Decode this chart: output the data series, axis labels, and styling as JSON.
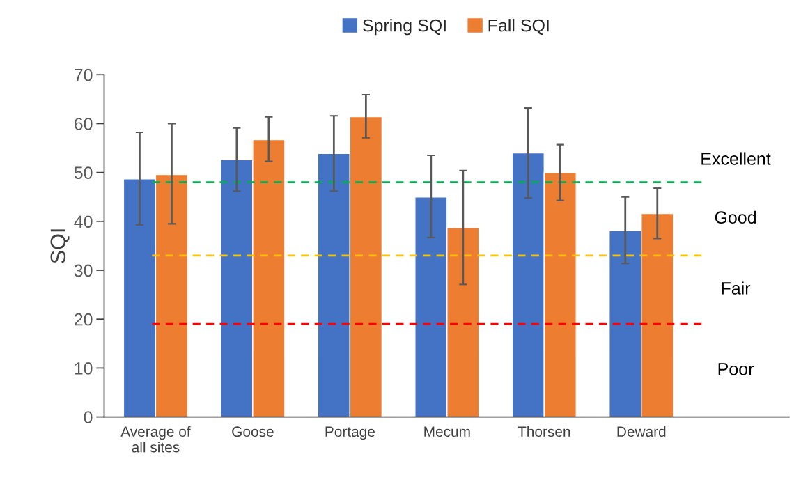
{
  "chart_data": {
    "type": "bar",
    "ylabel": "SQI",
    "categories": [
      "Average of\nall sites",
      "Goose",
      "Portage",
      "Mecum",
      "Thorsen",
      "Deward"
    ],
    "series": [
      {
        "name": "Spring SQI",
        "color": "#4472c4",
        "values": [
          48.7,
          52.6,
          53.9,
          45.0,
          54.0,
          38.1
        ],
        "errors": [
          [
            39.3,
            58.2
          ],
          [
            46.2,
            59.1
          ],
          [
            46.2,
            61.6
          ],
          [
            36.7,
            53.5
          ],
          [
            44.8,
            63.2
          ],
          [
            31.4,
            45.0
          ]
        ]
      },
      {
        "name": "Fall SQI",
        "color": "#ed7d31",
        "values": [
          49.6,
          56.7,
          61.4,
          38.7,
          50.0,
          41.6
        ],
        "errors": [
          [
            39.5,
            60.0
          ],
          [
            52.3,
            61.4
          ],
          [
            57.1,
            65.9
          ],
          [
            27.1,
            50.4
          ],
          [
            44.3,
            55.7
          ],
          [
            36.5,
            46.8
          ]
        ]
      }
    ],
    "ylim": [
      0,
      70
    ],
    "yticks": [
      0,
      10,
      20,
      30,
      40,
      50,
      60,
      70
    ],
    "ref_lines": [
      {
        "axis": "y",
        "value": 48,
        "color": "#00b050",
        "line_style": "dashed"
      },
      {
        "axis": "y",
        "value": 33,
        "color": "#ffc000",
        "line_style": "dashed"
      },
      {
        "axis": "y",
        "value": 19,
        "color": "#ff0000",
        "line_style": "dashed"
      }
    ],
    "annotations": [
      "Excellent",
      "Good",
      "Fair",
      "Poor"
    ],
    "legend": "top",
    "grid": false
  }
}
